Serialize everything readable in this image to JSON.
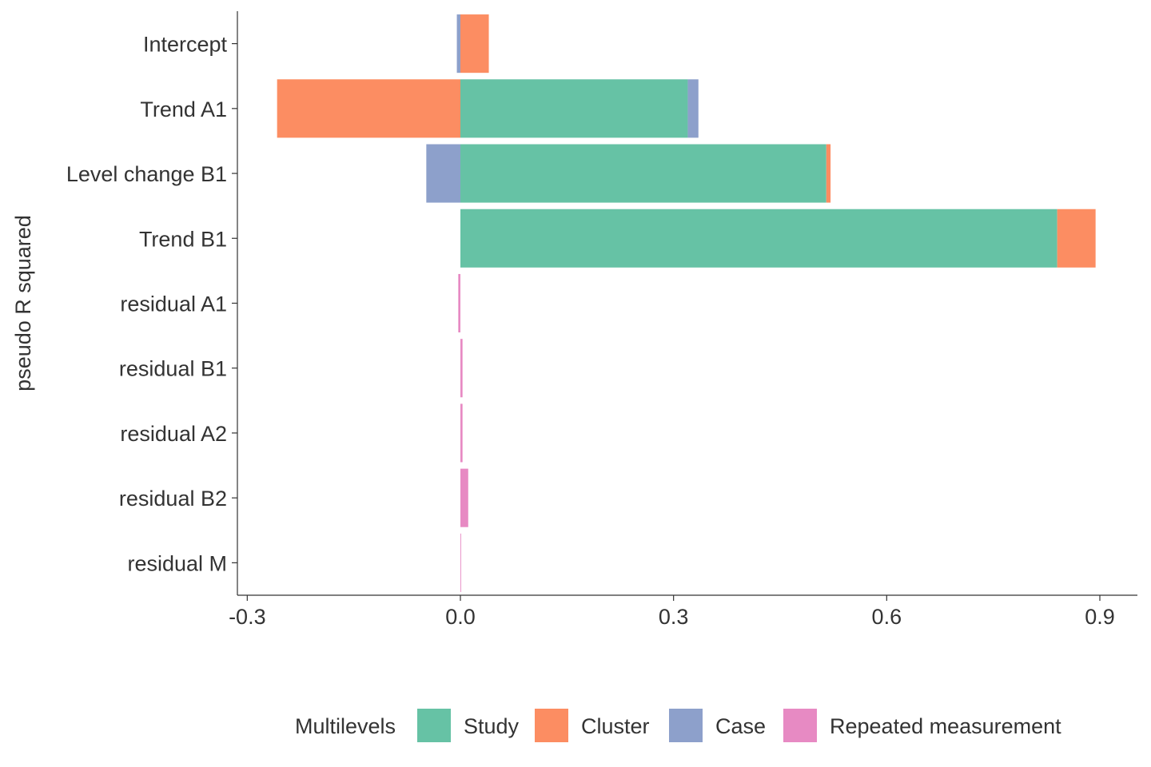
{
  "chart_data": {
    "type": "bar",
    "orientation": "horizontal",
    "stacked": true,
    "ylabel": "pseudo R squared",
    "xlabel": "",
    "xlim": [
      -0.31,
      0.95
    ],
    "x_ticks": [
      -0.3,
      0.0,
      0.3,
      0.6,
      0.9
    ],
    "x_tick_labels": [
      "-0.3",
      "0.0",
      "0.3",
      "0.6",
      "0.9"
    ],
    "grid": false,
    "legend_position": "bottom",
    "legend_title": "Multilevels",
    "categories": [
      "Intercept",
      "Trend A1",
      "Level change B1",
      "Trend B1",
      "residual A1",
      "residual B1",
      "residual A2",
      "residual B2",
      "residual M"
    ],
    "series": [
      {
        "name": "Study",
        "color": "#66c2a5",
        "values": [
          0.0,
          0.32,
          0.515,
          0.84,
          0.0,
          0.0,
          0.0,
          0.0,
          0.0
        ]
      },
      {
        "name": "Cluster",
        "color": "#fc8d62",
        "values": [
          0.04,
          -0.258,
          0.006,
          0.054,
          0.0,
          0.0,
          0.0,
          0.0,
          0.0
        ]
      },
      {
        "name": "Case",
        "color": "#8da0cb",
        "values": [
          -0.005,
          0.015,
          -0.048,
          0.0,
          0.0,
          0.0,
          0.0,
          0.0,
          0.0
        ]
      },
      {
        "name": "Repeated measurement",
        "color": "#e78ac3",
        "values": [
          0.0,
          0.0,
          0.0,
          0.0,
          -0.003,
          0.003,
          0.003,
          0.011,
          0.001
        ]
      }
    ]
  }
}
